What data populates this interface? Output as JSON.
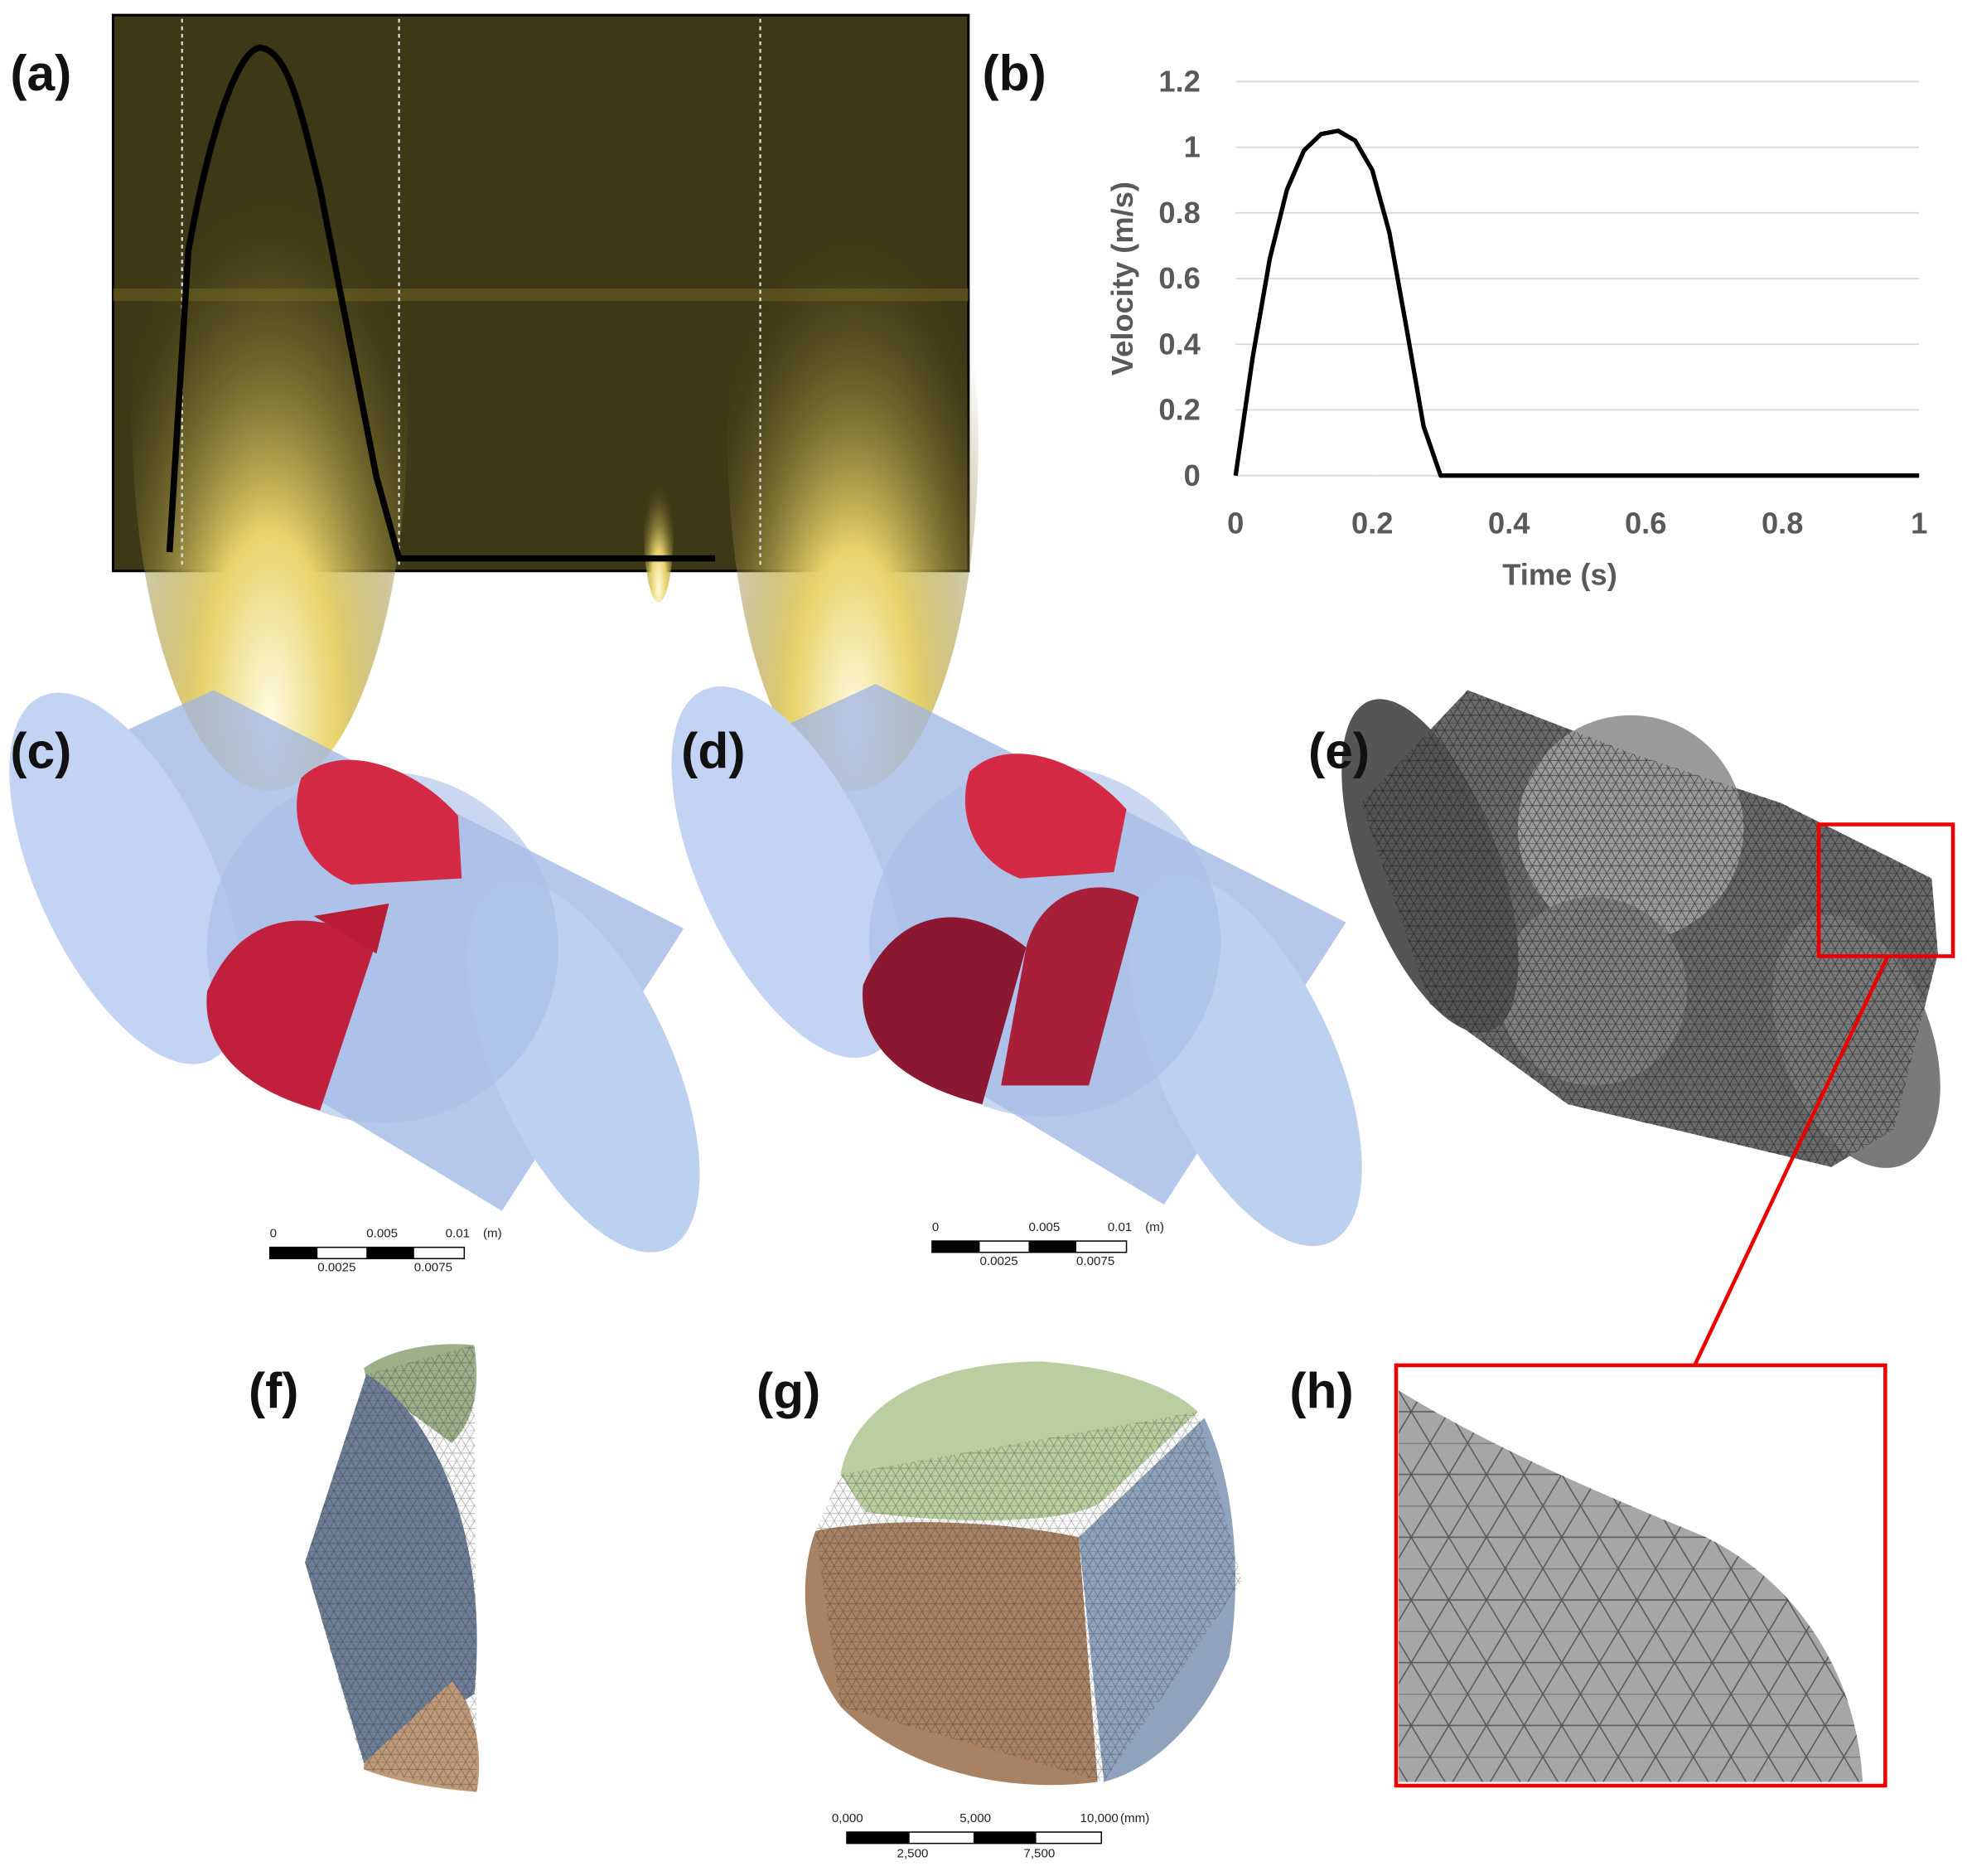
{
  "panel_labels": [
    "(a)",
    "(b)",
    "(c)",
    "(d)",
    "(e)",
    "(f)",
    "(g)",
    "(h)"
  ],
  "scale_bars": [
    {
      "top": [
        "0",
        "0.005",
        "0.01"
      ],
      "unit": "(m)",
      "bottom": [
        "0.0025",
        "0.0075"
      ]
    },
    {
      "top": [
        "0",
        "0.005",
        "0.01"
      ],
      "unit": "(m)",
      "bottom": [
        "0.0025",
        "0.0075"
      ]
    },
    {
      "top": [
        "0,000",
        "5,000",
        "10,000"
      ],
      "unit": "(mm)",
      "bottom": [
        "2,500",
        "7,500"
      ]
    }
  ],
  "chart_data": {
    "type": "line",
    "xlabel": "Time (s)",
    "ylabel": "Velocity (m/s)",
    "x": [
      0,
      0.025,
      0.05,
      0.075,
      0.1,
      0.125,
      0.15,
      0.175,
      0.2,
      0.225,
      0.25,
      0.275,
      0.3,
      1
    ],
    "values": [
      0,
      0.36,
      0.66,
      0.87,
      0.99,
      1.04,
      1.05,
      1.02,
      0.93,
      0.74,
      0.45,
      0.15,
      0,
      0
    ],
    "color": "#000000",
    "xlim": [
      0,
      1
    ],
    "ylim": [
      0,
      1.2
    ],
    "xticks": [
      0,
      0.2,
      0.4,
      0.6,
      0.8,
      1
    ],
    "yticks": [
      0,
      0.2,
      0.4,
      0.6,
      0.8,
      1,
      1.2
    ],
    "grid": true
  }
}
